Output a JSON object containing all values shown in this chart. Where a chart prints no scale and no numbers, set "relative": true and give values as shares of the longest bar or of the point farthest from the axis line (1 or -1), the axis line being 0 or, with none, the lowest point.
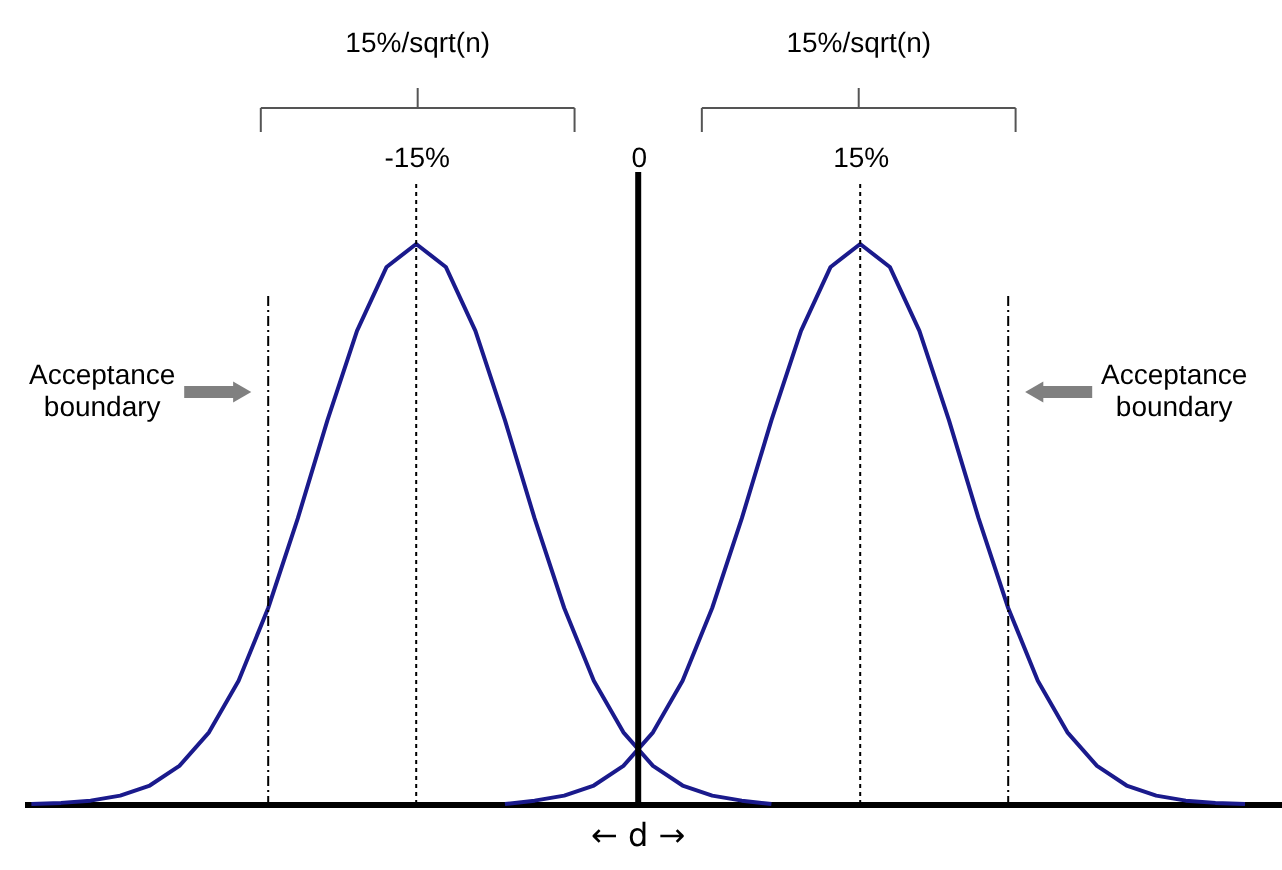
{
  "chart_data": {
    "type": "line",
    "relative": true,
    "xlim": [
      -41.5,
      43.5
    ],
    "xticks": [
      {
        "value": -15,
        "label": "-15%"
      },
      0,
      {
        "value": 15,
        "label": "15%"
      }
    ],
    "series": [
      {
        "color": "#1a1a8c",
        "x": [
          -41,
          -39,
          -37,
          -35,
          -33,
          -31,
          -29,
          -27,
          -25,
          -23,
          -21,
          -19,
          -17,
          -15,
          -13,
          -11,
          -9,
          -7,
          -5,
          -3,
          -1,
          1,
          3,
          5,
          7,
          9
        ],
        "values": [
          0,
          0.002,
          0.006,
          0.015,
          0.033,
          0.068,
          0.128,
          0.22,
          0.35,
          0.51,
          0.685,
          0.845,
          0.959,
          1,
          0.959,
          0.845,
          0.685,
          0.51,
          0.35,
          0.22,
          0.128,
          0.068,
          0.033,
          0.015,
          0.006,
          0
        ]
      },
      {
        "color": "#1a1a8c",
        "x": [
          -9,
          -7,
          -5,
          -3,
          -1,
          1,
          3,
          5,
          7,
          9,
          11,
          13,
          15,
          17,
          19,
          21,
          23,
          25,
          27,
          29,
          31,
          33,
          35,
          37,
          39,
          41
        ],
        "values": [
          0,
          0.006,
          0.015,
          0.033,
          0.068,
          0.128,
          0.22,
          0.35,
          0.51,
          0.685,
          0.845,
          0.959,
          1,
          0.959,
          0.845,
          0.685,
          0.51,
          0.35,
          0.22,
          0.128,
          0.068,
          0.033,
          0.015,
          0.006,
          0.002,
          0
        ]
      }
    ],
    "ref_lines": [
      {
        "axis": "x",
        "value": 0,
        "line_style": "solid",
        "color": "#000000"
      },
      {
        "axis": "x",
        "value": -15,
        "line_style": "dotted",
        "color": "#000000"
      },
      {
        "axis": "x",
        "value": 15,
        "line_style": "dotted",
        "color": "#000000"
      },
      {
        "axis": "x",
        "value": -25,
        "line_style": "dashdot",
        "color": "#000000"
      },
      {
        "axis": "x",
        "value": 25,
        "line_style": "dashdot",
        "color": "#000000"
      }
    ],
    "annotations": [
      "15%/sqrt(n)",
      "15%/sqrt(n)",
      "Acceptance boundary",
      "Acceptance boundary",
      "← d →"
    ],
    "grid": false,
    "marker": "none",
    "line_style": "solid"
  }
}
